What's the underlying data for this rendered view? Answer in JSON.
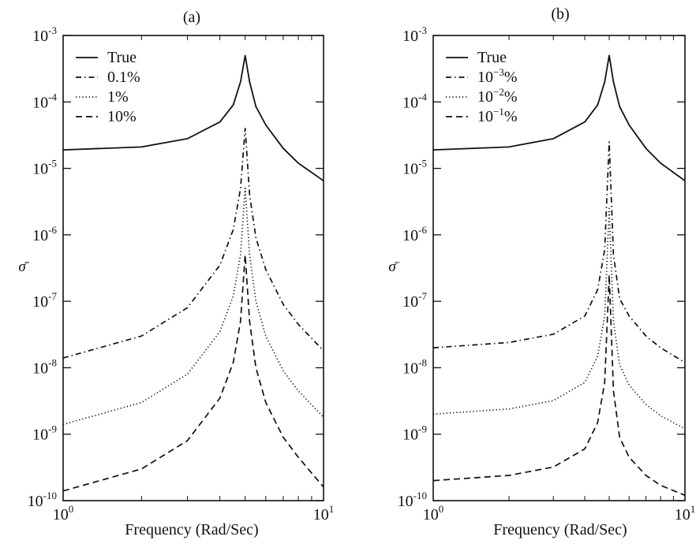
{
  "chart_data": [
    {
      "type": "line",
      "title": "(a)",
      "xlabel": "Frequency (Rad/Sec)",
      "ylabel": "σ̄",
      "xscale": "log",
      "yscale": "log",
      "xlim": [
        1,
        10
      ],
      "ylim": [
        1e-10,
        0.001
      ],
      "grid": false,
      "legend_position": "top-left",
      "x_ticks": [
        {
          "value": 1,
          "base": "10",
          "exp": "0"
        },
        {
          "value": 10,
          "base": "10",
          "exp": "1"
        }
      ],
      "y_ticks": [
        {
          "value": 0.001,
          "base": "10",
          "exp": "-3"
        },
        {
          "value": 0.0001,
          "base": "10",
          "exp": "-4"
        },
        {
          "value": 1e-05,
          "base": "10",
          "exp": "-5"
        },
        {
          "value": 1e-06,
          "base": "10",
          "exp": "-6"
        },
        {
          "value": 1e-07,
          "base": "10",
          "exp": "-7"
        },
        {
          "value": 1e-08,
          "base": "10",
          "exp": "-8"
        },
        {
          "value": 1e-09,
          "base": "10",
          "exp": "-9"
        },
        {
          "value": 1e-10,
          "base": "10",
          "exp": "-10"
        }
      ],
      "series": [
        {
          "name": "True",
          "label_base": "True",
          "label_exp": "",
          "label_suffix": "",
          "style": "solid",
          "x": [
            1,
            2,
            3,
            4,
            4.5,
            4.8,
            5,
            5.2,
            5.5,
            6,
            7,
            8,
            10
          ],
          "y": [
            1.9e-05,
            2.1e-05,
            2.8e-05,
            5e-05,
            9e-05,
            0.0002,
            0.0005,
            0.0002,
            8.5e-05,
            4.5e-05,
            2e-05,
            1.2e-05,
            6.5e-06
          ]
        },
        {
          "name": "0.1%",
          "label_base": "0.1%",
          "label_exp": "",
          "label_suffix": "",
          "style": "dashdot",
          "x": [
            1,
            2,
            3,
            4,
            4.5,
            4.8,
            5,
            5.2,
            5.5,
            6,
            7,
            8,
            10
          ],
          "y": [
            1.4e-08,
            3e-08,
            8e-08,
            3.5e-07,
            1.2e-06,
            5e-06,
            4e-05,
            4e-06,
            9e-07,
            3e-07,
            9e-08,
            4.5e-08,
            1.8e-08
          ]
        },
        {
          "name": "1%",
          "label_base": "1%",
          "label_exp": "",
          "label_suffix": "",
          "style": "dotted",
          "x": [
            1,
            2,
            3,
            4,
            4.5,
            4.8,
            5,
            5.2,
            5.5,
            6,
            7,
            8,
            10
          ],
          "y": [
            1.4e-09,
            3e-09,
            8e-09,
            3.5e-08,
            1.2e-07,
            5e-07,
            5e-06,
            5e-07,
            1e-07,
            3e-08,
            9e-09,
            4.5e-09,
            1.8e-09
          ]
        },
        {
          "name": "10%",
          "label_base": "10%",
          "label_exp": "",
          "label_suffix": "",
          "style": "dashed",
          "x": [
            1,
            2,
            3,
            4,
            4.5,
            4.8,
            5,
            5.2,
            5.5,
            6,
            7,
            8,
            10
          ],
          "y": [
            1.4e-10,
            3e-10,
            8e-10,
            3.5e-09,
            1.2e-08,
            5e-08,
            5e-07,
            5e-08,
            1e-08,
            3e-09,
            9e-10,
            4.5e-10,
            1.6e-10
          ]
        }
      ]
    },
    {
      "type": "line",
      "title": "(b)",
      "xlabel": "Frequency (Rad/Sec)",
      "ylabel": "σ̄",
      "xscale": "log",
      "yscale": "log",
      "xlim": [
        1,
        10
      ],
      "ylim": [
        1e-10,
        0.001
      ],
      "grid": false,
      "legend_position": "top-left",
      "x_ticks": [
        {
          "value": 1,
          "base": "10",
          "exp": "0"
        },
        {
          "value": 10,
          "base": "10",
          "exp": "1"
        }
      ],
      "y_ticks": [
        {
          "value": 0.001,
          "base": "10",
          "exp": "-3"
        },
        {
          "value": 0.0001,
          "base": "10",
          "exp": "-4"
        },
        {
          "value": 1e-05,
          "base": "10",
          "exp": "-5"
        },
        {
          "value": 1e-06,
          "base": "10",
          "exp": "-6"
        },
        {
          "value": 1e-07,
          "base": "10",
          "exp": "-7"
        },
        {
          "value": 1e-08,
          "base": "10",
          "exp": "-8"
        },
        {
          "value": 1e-09,
          "base": "10",
          "exp": "-9"
        },
        {
          "value": 1e-10,
          "base": "10",
          "exp": "-10"
        }
      ],
      "series": [
        {
          "name": "True",
          "label_base": "True",
          "label_exp": "",
          "label_suffix": "",
          "style": "solid",
          "x": [
            1,
            2,
            3,
            4,
            4.5,
            4.8,
            5,
            5.2,
            5.5,
            6,
            7,
            8,
            10
          ],
          "y": [
            1.9e-05,
            2.1e-05,
            2.8e-05,
            5e-05,
            9e-05,
            0.0002,
            0.0005,
            0.0002,
            8.5e-05,
            4.5e-05,
            2e-05,
            1.2e-05,
            6.5e-06
          ]
        },
        {
          "name": "10^-3%",
          "label_base": "10",
          "label_exp": "−3",
          "label_suffix": "%",
          "style": "dashdot",
          "x": [
            1,
            2,
            3,
            4,
            4.5,
            4.8,
            5,
            5.2,
            5.5,
            6,
            7,
            8,
            10
          ],
          "y": [
            2e-08,
            2.4e-08,
            3.2e-08,
            6e-08,
            1.5e-07,
            6e-07,
            2.5e-05,
            5e-07,
            1.1e-07,
            6e-08,
            3e-08,
            2e-08,
            1.2e-08
          ]
        },
        {
          "name": "10^-2%",
          "label_base": "10",
          "label_exp": "−2",
          "label_suffix": "%",
          "style": "dotted",
          "x": [
            1,
            2,
            3,
            4,
            4.5,
            4.8,
            5,
            5.2,
            5.5,
            6,
            7,
            8,
            10
          ],
          "y": [
            2e-09,
            2.4e-09,
            3.2e-09,
            6e-09,
            1.5e-08,
            6e-08,
            2.5e-06,
            5e-08,
            1.1e-08,
            5.5e-09,
            2.8e-09,
            1.9e-09,
            1.2e-09
          ]
        },
        {
          "name": "10^-1%",
          "label_base": "10",
          "label_exp": "−1",
          "label_suffix": "%",
          "style": "dashed",
          "x": [
            1,
            2,
            3,
            4,
            4.5,
            4.8,
            5,
            5.2,
            5.5,
            6,
            7,
            8,
            10
          ],
          "y": [
            2e-10,
            2.4e-10,
            3.2e-10,
            6e-10,
            1.5e-09,
            6e-09,
            2.5e-07,
            4.5e-09,
            9e-10,
            4.5e-10,
            2.4e-10,
            1.7e-10,
            1.2e-10
          ]
        }
      ]
    }
  ]
}
